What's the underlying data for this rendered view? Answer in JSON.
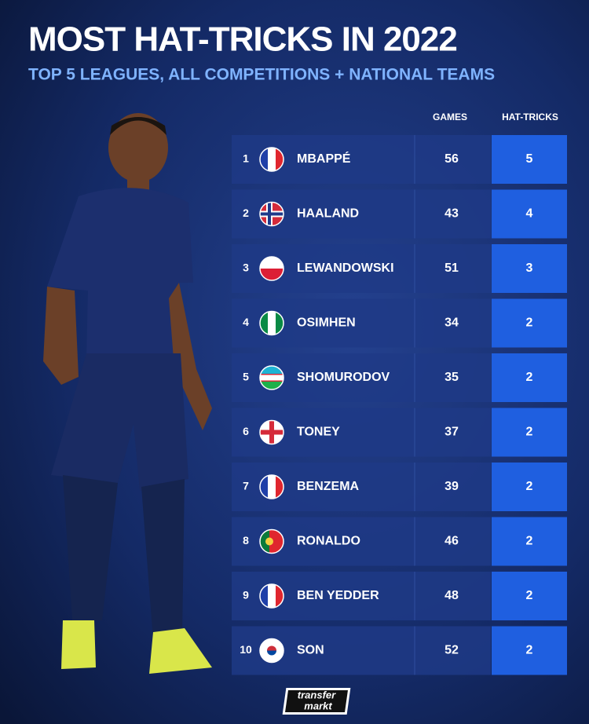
{
  "header": {
    "title": "MOST HAT-TRICKS IN 2022",
    "subtitle": "TOP 5 LEAGUES, ALL COMPETITIONS + NATIONAL TEAMS"
  },
  "table": {
    "columns": [
      "GAMES",
      "HAT-TRICKS"
    ],
    "rows": [
      {
        "rank": 1,
        "name": "MBAPPÉ",
        "games": 56,
        "hat_tricks": 5
      },
      {
        "rank": 2,
        "name": "HAALAND",
        "games": 43,
        "hat_tricks": 4
      },
      {
        "rank": 3,
        "name": "LEWANDOWSKI",
        "games": 51,
        "hat_tricks": 3
      },
      {
        "rank": 4,
        "name": "OSIMHEN",
        "games": 34,
        "hat_tricks": 2
      },
      {
        "rank": 5,
        "name": "SHOMURODOV",
        "games": 35,
        "hat_tricks": 2
      },
      {
        "rank": 6,
        "name": "TONEY",
        "games": 37,
        "hat_tricks": 2
      },
      {
        "rank": 7,
        "name": "BENZEMA",
        "games": 39,
        "hat_tricks": 2
      },
      {
        "rank": 8,
        "name": "RONALDO",
        "games": 46,
        "hat_tricks": 2
      },
      {
        "rank": 9,
        "name": "BEN YEDDER",
        "games": 48,
        "hat_tricks": 2
      },
      {
        "rank": 10,
        "name": "SON",
        "games": 52,
        "hat_tricks": 2
      }
    ]
  },
  "footer": {
    "logo_top": "transfer",
    "logo_bottom": "markt"
  }
}
